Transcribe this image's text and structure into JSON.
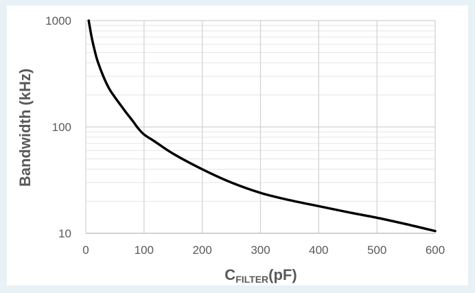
{
  "chart_data": {
    "type": "line",
    "title": "",
    "xlabel_main": "C",
    "xlabel_sub": "FILTER",
    "xlabel_unit": "(pF)",
    "ylabel": "Bandwidth (kHz)",
    "xlim": [
      0,
      600
    ],
    "ylim": [
      10,
      1000
    ],
    "y_scale": "log",
    "grid": true,
    "legend": "none",
    "x_ticks": [
      0,
      100,
      200,
      300,
      400,
      500,
      600
    ],
    "x_tick_labels": [
      "0",
      "100",
      "200",
      "300",
      "400",
      "500",
      "600"
    ],
    "y_ticks": [
      10,
      100,
      1000
    ],
    "y_tick_labels": [
      "10",
      "100",
      "1000"
    ],
    "line_color": "#000000",
    "series": [
      {
        "x": [
          5,
          10,
          15,
          20,
          30,
          40,
          50,
          60,
          70,
          80,
          90,
          100,
          120,
          150,
          200,
          250,
          300,
          350,
          400,
          450,
          500,
          550,
          600
        ],
        "y": [
          1000,
          700,
          530,
          420,
          300,
          230,
          190,
          160,
          135,
          115,
          97,
          85,
          72,
          56,
          40,
          30,
          24,
          20.5,
          18,
          15.8,
          14,
          12.2,
          10.5
        ]
      }
    ]
  }
}
